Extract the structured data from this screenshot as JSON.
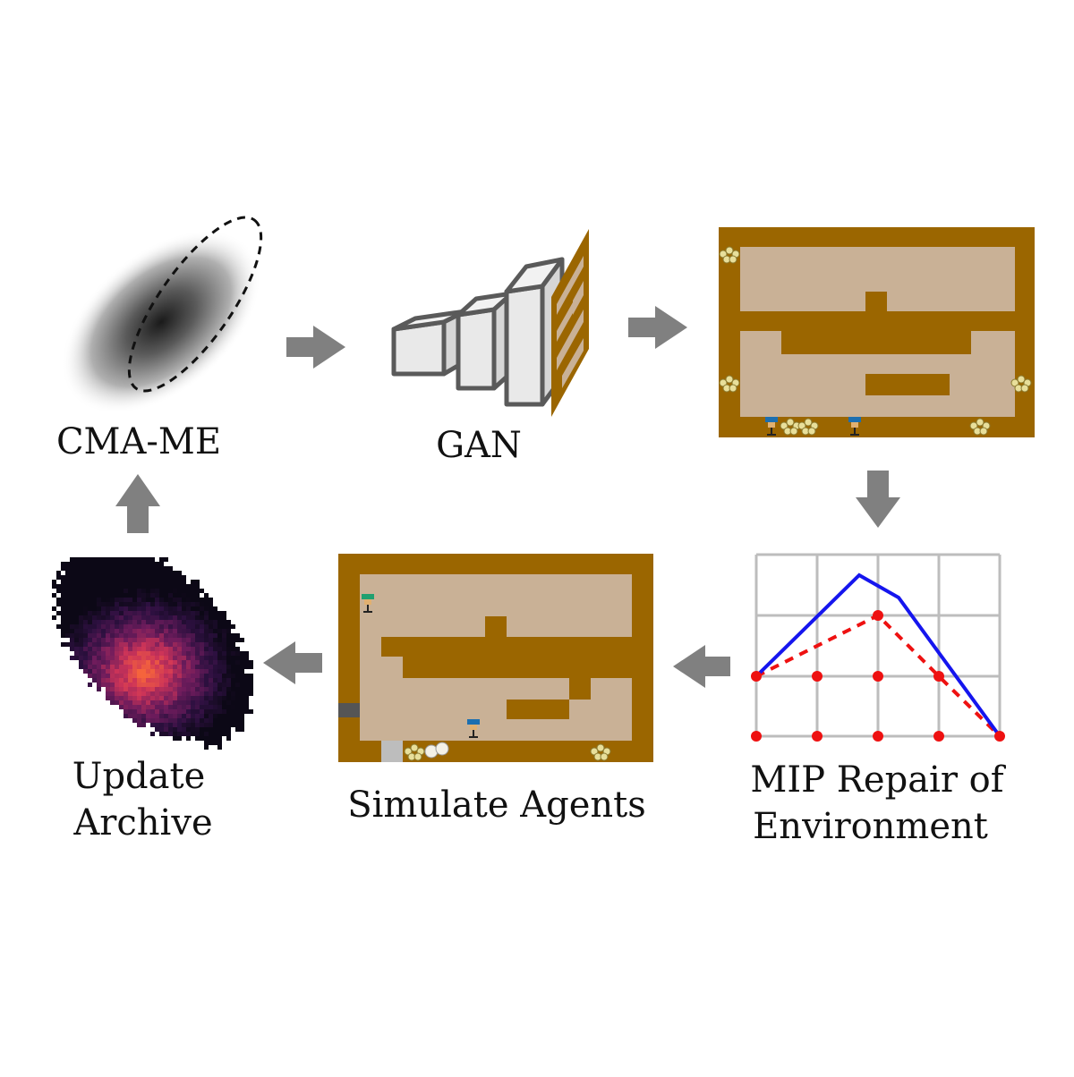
{
  "stages": {
    "cma_me": {
      "label": "CMA-ME"
    },
    "gan": {
      "label": "GAN"
    },
    "mip": {
      "label_line1": "MIP Repair of",
      "label_line2": "Environment"
    },
    "simulate": {
      "label": "Simulate Agents"
    },
    "archive": {
      "label_line1": "Update",
      "label_line2": "Archive"
    }
  },
  "colors": {
    "wall": "#9b6600",
    "floor": "#c9b196",
    "arrow": "#808080",
    "grid": "#bdbdbd",
    "repaired_line": "#1515ee",
    "original_points": "#ee1111"
  },
  "icons": {
    "onion": "onion-icon",
    "dish": "dish-icon",
    "chef": "chef-icon",
    "counter": "counter-icon",
    "pot": "pot-icon"
  }
}
